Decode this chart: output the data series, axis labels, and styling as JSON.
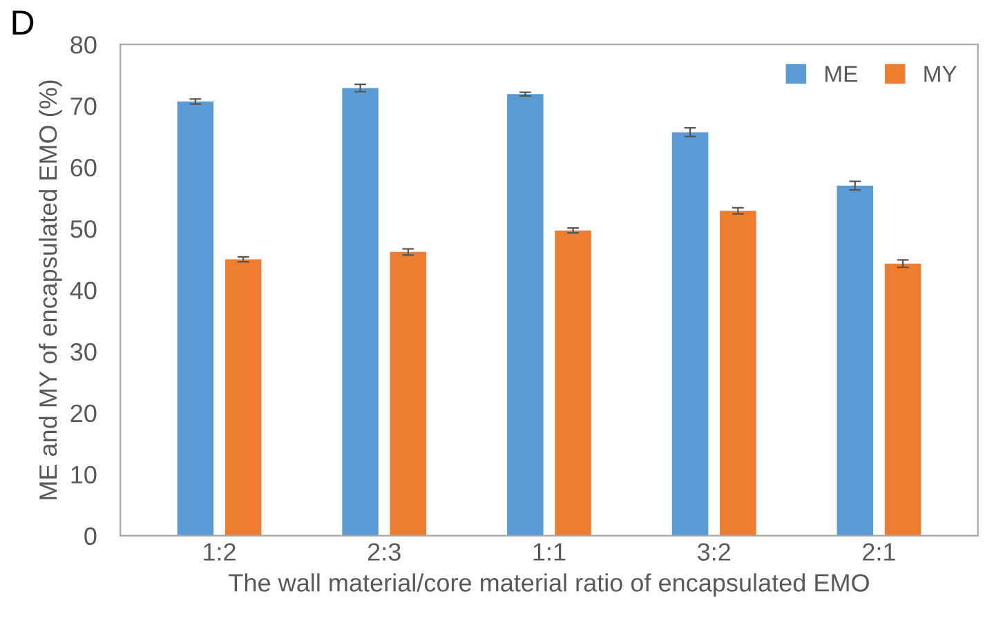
{
  "chart_data": {
    "type": "bar",
    "xlabel": "The wall material/core material ratio of encapsulated EMO",
    "ylabel": "ME and MY of encapsulated EMO (%)",
    "annotations": [
      "D"
    ],
    "categories": [
      "1:2",
      "2:3",
      "1:1",
      "3:2",
      "2:1"
    ],
    "series": [
      {
        "name": "ME",
        "color": "#5b9bd5",
        "values": [
          70.7,
          72.9,
          71.9,
          65.7,
          57.0
        ],
        "errors": [
          0.4,
          0.6,
          0.3,
          0.7,
          0.7
        ]
      },
      {
        "name": "MY",
        "color": "#ed7d31",
        "values": [
          45.0,
          46.2,
          49.7,
          52.9,
          44.3
        ],
        "errors": [
          0.4,
          0.5,
          0.4,
          0.5,
          0.6
        ]
      }
    ],
    "ylim": [
      0,
      80
    ],
    "yticks": [
      0,
      10,
      20,
      30,
      40,
      50,
      60,
      70,
      80
    ],
    "grid": false,
    "legend": "top right"
  }
}
